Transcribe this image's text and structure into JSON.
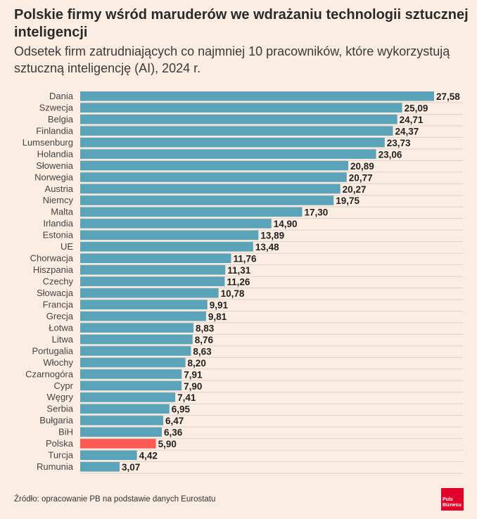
{
  "title": "Polskie firmy wśród maruderów we wdrażaniu technologii sztucznej inteligencji",
  "subtitle": "Odsetek firm zatrudniających co najmniej 10 pracowników, które wykorzystują sztuczną inteligencję (AI), 2024 r.",
  "source": "Źródło: opracowanie PB na podstawie danych Eurostatu",
  "logo_text": "Puls Biznesu",
  "colors": {
    "bar": "#5aa3b8",
    "highlight": "#ff5a52",
    "background": "#fcede2"
  },
  "chart_data": {
    "type": "bar",
    "orientation": "horizontal",
    "categories": [
      "Dania",
      "Szwecja",
      "Belgia",
      "Finlandia",
      "Lumsenburg",
      "Holandia",
      "Słowenia",
      "Norwegia",
      "Austria",
      "Niemcy",
      "Malta",
      "Irlandia",
      "Estonia",
      "UE",
      "Chorwacja",
      "Hiszpania",
      "Czechy",
      "Słowacja",
      "Francja",
      "Grecja",
      "Łotwa",
      "Litwa",
      "Portugalia",
      "Włochy",
      "Czarnogóra",
      "Cypr",
      "Węgry",
      "Serbia",
      "Bułgaria",
      "BiH",
      "Polska",
      "Turcja",
      "Rumunia"
    ],
    "values": [
      27.58,
      25.09,
      24.71,
      24.37,
      23.73,
      23.06,
      20.89,
      20.77,
      20.27,
      19.75,
      17.3,
      14.9,
      13.89,
      13.48,
      11.76,
      11.31,
      11.26,
      10.78,
      9.91,
      9.81,
      8.83,
      8.76,
      8.63,
      8.2,
      7.91,
      7.9,
      7.41,
      6.95,
      6.47,
      6.36,
      5.9,
      4.42,
      3.07
    ],
    "value_labels": [
      "27,58",
      "25,09",
      "24,71",
      "24,37",
      "23,73",
      "23,06",
      "20,89",
      "20,77",
      "20,27",
      "19,75",
      "17,30",
      "14,90",
      "13,89",
      "13,48",
      "11,76",
      "11,31",
      "11,26",
      "10,78",
      "9,91",
      "9,81",
      "8,83",
      "8,76",
      "8,63",
      "8,20",
      "7,91",
      "7,90",
      "7,41",
      "6,95",
      "6,47",
      "6,36",
      "5,90",
      "4,42",
      "3,07"
    ],
    "highlight": "Polska",
    "xlim": [
      0,
      30
    ],
    "grid": true
  }
}
